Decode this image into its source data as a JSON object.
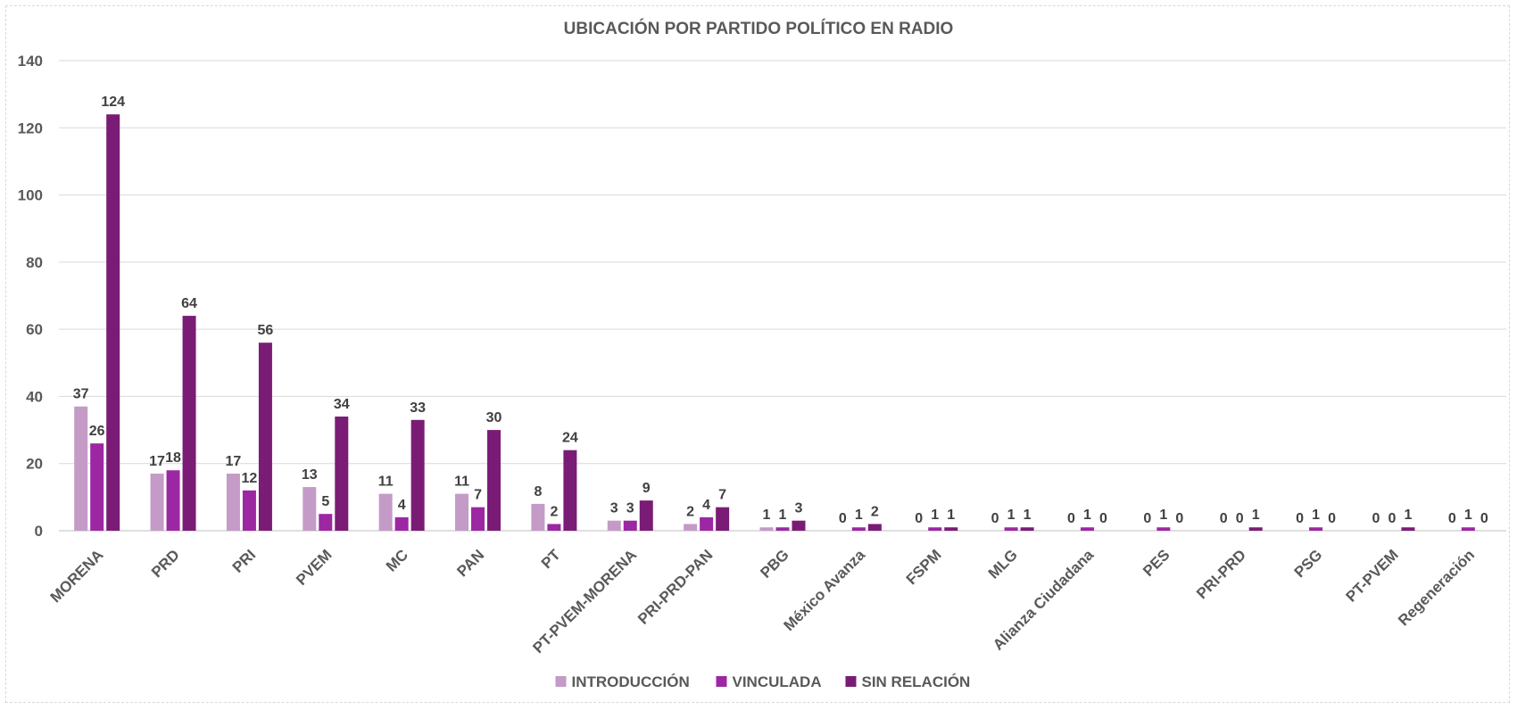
{
  "chart_data": {
    "type": "bar",
    "title": "UBICACIÓN POR PARTIDO POLÍTICO EN RADIO",
    "xlabel": "",
    "ylabel": "",
    "ylim": [
      0,
      140
    ],
    "yticks": [
      "0",
      "20",
      "40",
      "60",
      "80",
      "100",
      "120",
      "140"
    ],
    "grid": true,
    "legend_position": "bottom",
    "categories": [
      "MORENA",
      "PRD",
      "PRI",
      "PVEM",
      "MC",
      "PAN",
      "PT",
      "PT-PVEM-MORENA",
      "PRI-PRD-PAN",
      "PBG",
      "México Avanza",
      "FSPM",
      "MLG",
      "Alianza Ciudadana",
      "PES",
      "PRI-PRD",
      "PSG",
      "PT-PVEM",
      "Regeneración"
    ],
    "series": [
      {
        "name": "INTRODUCCIÓN",
        "color": "#c39bc6",
        "values": [
          37,
          17,
          17,
          13,
          11,
          11,
          8,
          3,
          2,
          1,
          0,
          0,
          0,
          0,
          0,
          0,
          0,
          0,
          0
        ]
      },
      {
        "name": "VINCULADA",
        "color": "#9c27a3",
        "values": [
          26,
          18,
          12,
          5,
          4,
          7,
          2,
          3,
          4,
          1,
          1,
          1,
          1,
          1,
          1,
          0,
          1,
          0,
          1
        ]
      },
      {
        "name": "SIN RELACIÓN",
        "color": "#7a1c76",
        "values": [
          124,
          64,
          56,
          34,
          33,
          30,
          24,
          9,
          7,
          3,
          2,
          1,
          1,
          0,
          0,
          1,
          0,
          1,
          0
        ]
      }
    ]
  }
}
